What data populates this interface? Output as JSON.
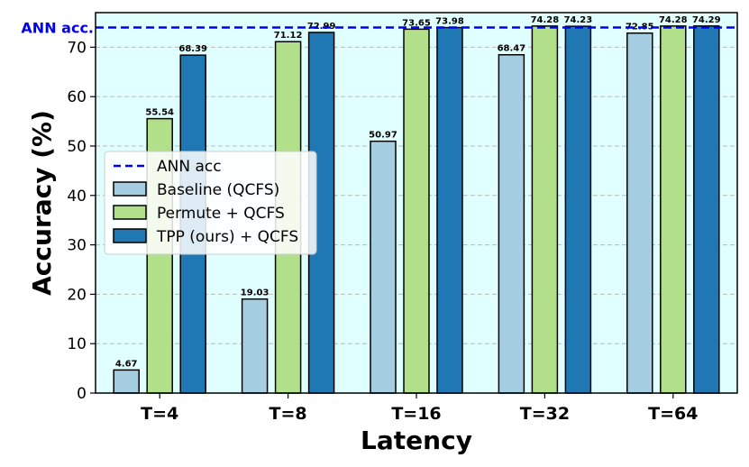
{
  "chart_data": {
    "type": "bar",
    "title": "",
    "xlabel": "Latency",
    "ylabel": "Accuracy (%)",
    "ylim": [
      0,
      77
    ],
    "yticks": [
      0,
      10,
      20,
      30,
      40,
      50,
      60,
      70
    ],
    "grid": "horizontal dashed",
    "categories": [
      "T=4",
      "T=8",
      "T=16",
      "T=32",
      "T=64"
    ],
    "series": [
      {
        "name": "Baseline (QCFS)",
        "color": "#a6cee3",
        "values": [
          4.67,
          19.03,
          50.97,
          68.47,
          72.85
        ]
      },
      {
        "name": "Permute + QCFS",
        "color": "#b2df8a",
        "values": [
          55.54,
          71.12,
          73.65,
          74.28,
          74.28
        ]
      },
      {
        "name": "TPP (ours) + QCFS",
        "color": "#1f78b4",
        "values": [
          68.39,
          72.99,
          73.98,
          74.23,
          74.29
        ]
      }
    ],
    "reference_line": {
      "name": "ANN acc",
      "annotation": "ANN acc.",
      "value": 74.0,
      "color": "#0000ee"
    },
    "legend_position": "center-left",
    "background_color": "#e0ffff"
  }
}
